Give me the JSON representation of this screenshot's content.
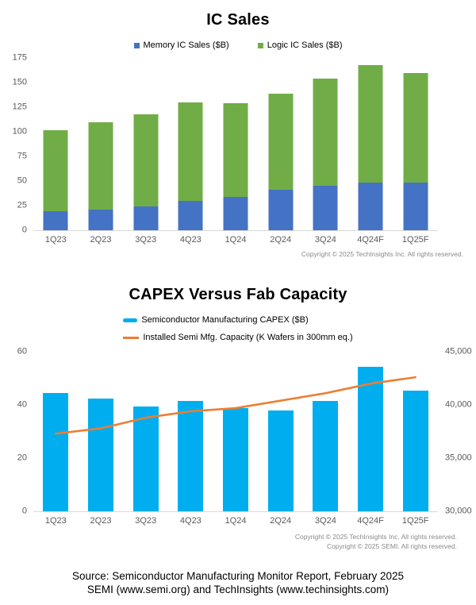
{
  "page": {
    "footer_line1": "Source: Semiconductor Manufacturing Monitor Report, February 2025",
    "footer_line2": "SEMI (www.semi.org) and TechInsights (www.techinsights.com)"
  },
  "chart_data": [
    {
      "type": "bar",
      "variant": "stacked",
      "title": "IC Sales",
      "categories": [
        "1Q23",
        "2Q23",
        "3Q23",
        "4Q23",
        "1Q24",
        "2Q24",
        "3Q24",
        "4Q24F",
        "1Q25F"
      ],
      "series": [
        {
          "name": "Memory IC Sales ($B)",
          "color": "#4472C4",
          "values": [
            19,
            21,
            24,
            30,
            34,
            41,
            45,
            48,
            48
          ]
        },
        {
          "name": "Logic IC Sales ($B)",
          "color": "#70AD47",
          "values": [
            83,
            89,
            94,
            100,
            95,
            98,
            109,
            120,
            112
          ]
        }
      ],
      "ylim": [
        0,
        175
      ],
      "yticks": [
        0,
        25,
        50,
        75,
        100,
        125,
        150,
        175
      ],
      "grid": false,
      "legend_position": "top",
      "copyright": "Copyright © 2025 TechInsights Inc.  All rights reserved."
    },
    {
      "type": "bar",
      "variant": "bar-plus-line",
      "title": "CAPEX Versus Fab Capacity",
      "categories": [
        "1Q23",
        "2Q23",
        "3Q23",
        "4Q23",
        "1Q24",
        "2Q24",
        "3Q24",
        "4Q24F",
        "1Q25F"
      ],
      "series": [
        {
          "name": "Semiconductor Manufacturing CAPEX ($B)",
          "type": "bar",
          "axis": "left",
          "color": "#00AEEF",
          "values": [
            44.5,
            42.5,
            39.5,
            41.5,
            39,
            38,
            41.5,
            54.5,
            45.5
          ]
        },
        {
          "name": "Installed Semi Mfg. Capacity (K Wafers in 300mm eq.)",
          "type": "line",
          "axis": "right",
          "color": "#ED7D31",
          "values": [
            37300,
            37800,
            38800,
            39400,
            39700,
            40400,
            41100,
            42000,
            42600
          ]
        }
      ],
      "left_ylim": [
        0,
        60
      ],
      "left_yticks": [
        0,
        20,
        40,
        60
      ],
      "right_ylim": [
        30000,
        45000
      ],
      "right_ytick_labels": [
        "30,000",
        "35,000",
        "40,000",
        "45,000"
      ],
      "grid": false,
      "legend_position": "top",
      "copyright_line1": "Copyright © 2025 TechInsights Inc.  All rights reserved.",
      "copyright_line2": "Copyright © 2025 SEMI.  All rights reserved."
    }
  ]
}
